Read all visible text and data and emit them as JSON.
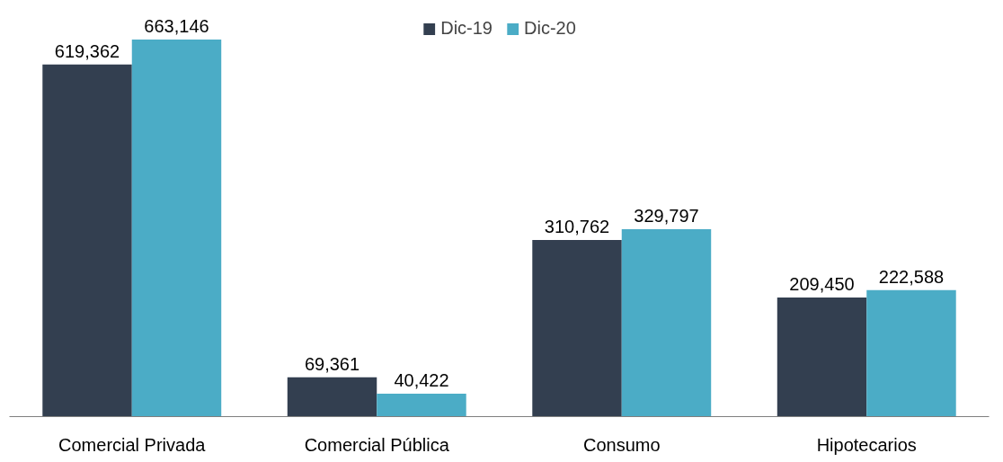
{
  "chart_data": {
    "type": "bar",
    "categories": [
      "Comercial Privada",
      "Comercial Pública",
      "Consumo",
      "Hipotecarios"
    ],
    "series": [
      {
        "name": "Dic-19",
        "color": "#333f50",
        "values": [
          619362,
          69361,
          310762,
          209450
        ],
        "value_labels": [
          "619,362",
          "69,361",
          "310,762",
          "209,450"
        ]
      },
      {
        "name": "Dic-20",
        "color": "#4bacc6",
        "values": [
          663146,
          40422,
          329797,
          222588
        ],
        "value_labels": [
          "663,146",
          "40,422",
          "329,797",
          "222,588"
        ]
      }
    ],
    "legend": "top",
    "grid": false
  }
}
